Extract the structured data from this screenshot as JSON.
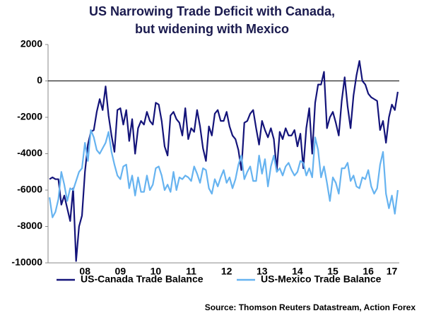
{
  "chart_data": {
    "type": "line",
    "title": [
      "US Narrowing Trade Deficit with Canada,",
      "but widening with Mexico"
    ],
    "source": "Source: Thomson Reuters Datastream, Action Forex",
    "categories": [
      null,
      null,
      null,
      null,
      null,
      null,
      null,
      null,
      null,
      null,
      null,
      null,
      "08",
      null,
      null,
      null,
      null,
      null,
      null,
      null,
      null,
      null,
      null,
      null,
      "09",
      null,
      null,
      null,
      null,
      null,
      null,
      null,
      null,
      null,
      null,
      null,
      "10",
      null,
      null,
      null,
      null,
      null,
      null,
      null,
      null,
      null,
      null,
      null,
      "11",
      null,
      null,
      null,
      null,
      null,
      null,
      null,
      null,
      null,
      null,
      null,
      "12",
      null,
      null,
      null,
      null,
      null,
      null,
      null,
      null,
      null,
      null,
      null,
      "13",
      null,
      null,
      null,
      null,
      null,
      null,
      null,
      null,
      null,
      null,
      null,
      "14",
      null,
      null,
      null,
      null,
      null,
      null,
      null,
      null,
      null,
      null,
      null,
      "15",
      null,
      null,
      null,
      null,
      null,
      null,
      null,
      null,
      null,
      null,
      null,
      "16",
      null,
      null,
      null,
      null,
      null,
      null,
      null,
      "17",
      null,
      null
    ],
    "series": [
      {
        "name": "US-Canada Trade Balance",
        "color": "#14147a",
        "values": [
          -5400,
          -5300,
          -5400,
          -5400,
          -6800,
          -6300,
          -7000,
          -7700,
          -5900,
          -9900,
          -8000,
          -7400,
          -5000,
          -3500,
          -2800,
          -2700,
          -1700,
          -1000,
          -1600,
          -300,
          -1900,
          -3000,
          -3900,
          -1600,
          -1500,
          -2400,
          -1600,
          -3300,
          -2100,
          -4000,
          -2600,
          -2200,
          -2400,
          -1700,
          -2200,
          -2400,
          -1200,
          -1300,
          -2200,
          -3600,
          -4100,
          -1900,
          -1700,
          -2100,
          -2300,
          -3000,
          -1500,
          -3200,
          -2600,
          -2800,
          -1600,
          -2500,
          -3700,
          -4400,
          -2500,
          -3000,
          -1800,
          -1600,
          -2200,
          -2200,
          -1700,
          -2500,
          -3000,
          -3200,
          -3800,
          -4900,
          -2300,
          -2200,
          -1800,
          -1600,
          -2600,
          -3500,
          -2200,
          -2700,
          -3100,
          -2600,
          -3200,
          -4900,
          -2800,
          -3200,
          -2600,
          -3000,
          -3000,
          -2700,
          -3600,
          -2900,
          -4800,
          -2600,
          -1500,
          -4000,
          -1200,
          -200,
          -200,
          500,
          -2600,
          -2000,
          -1700,
          -2300,
          -3000,
          -1100,
          200,
          -1400,
          -2600,
          -800,
          300,
          1100,
          0,
          -200,
          -700,
          -900,
          -1000,
          -1100,
          -2700,
          -2200,
          -3400,
          -2000,
          -1300,
          -1600,
          -600
        ]
      },
      {
        "name": "US-Mexico Trade Balance",
        "color": "#66b3f0",
        "values": [
          -6400,
          -7500,
          -7200,
          -6500,
          -5000,
          -5700,
          -6600,
          -5900,
          -6000,
          -5500,
          -5000,
          -4800,
          -3400,
          -4400,
          -2700,
          -3100,
          -3800,
          -4000,
          -3700,
          -3400,
          -2800,
          -3900,
          -4600,
          -5200,
          -5400,
          -4700,
          -4600,
          -5900,
          -5200,
          -6300,
          -5300,
          -6100,
          -6100,
          -5200,
          -6000,
          -5700,
          -4800,
          -4700,
          -5200,
          -6000,
          -5700,
          -6100,
          -5000,
          -6000,
          -5300,
          -5400,
          -5200,
          -5300,
          -5500,
          -4700,
          -5100,
          -5600,
          -4800,
          -4900,
          -5900,
          -6200,
          -5400,
          -5800,
          -5300,
          -4900,
          -5600,
          -5300,
          -5900,
          -5400,
          -4600,
          -4100,
          -5400,
          -5000,
          -4700,
          -5500,
          -5500,
          -4100,
          -5100,
          -4300,
          -5800,
          -4700,
          -4100,
          -5000,
          -4800,
          -5200,
          -4700,
          -4500,
          -4900,
          -5200,
          -5000,
          -4400,
          -4500,
          -5200,
          -4800,
          -5300,
          -3100,
          -3800,
          -5300,
          -4700,
          -5600,
          -6600,
          -5300,
          -5600,
          -6200,
          -4800,
          -4800,
          -4500,
          -5500,
          -5200,
          -5800,
          -5900,
          -5300,
          -5400,
          -4900,
          -5800,
          -6200,
          -5900,
          -4600,
          -3900,
          -6200,
          -7000,
          -6300,
          -7300,
          -6000
        ]
      }
    ],
    "ylim": [
      -10000,
      2000
    ],
    "yticks": [
      -10000,
      -8000,
      -6000,
      -4000,
      -2000,
      0,
      2000
    ]
  }
}
